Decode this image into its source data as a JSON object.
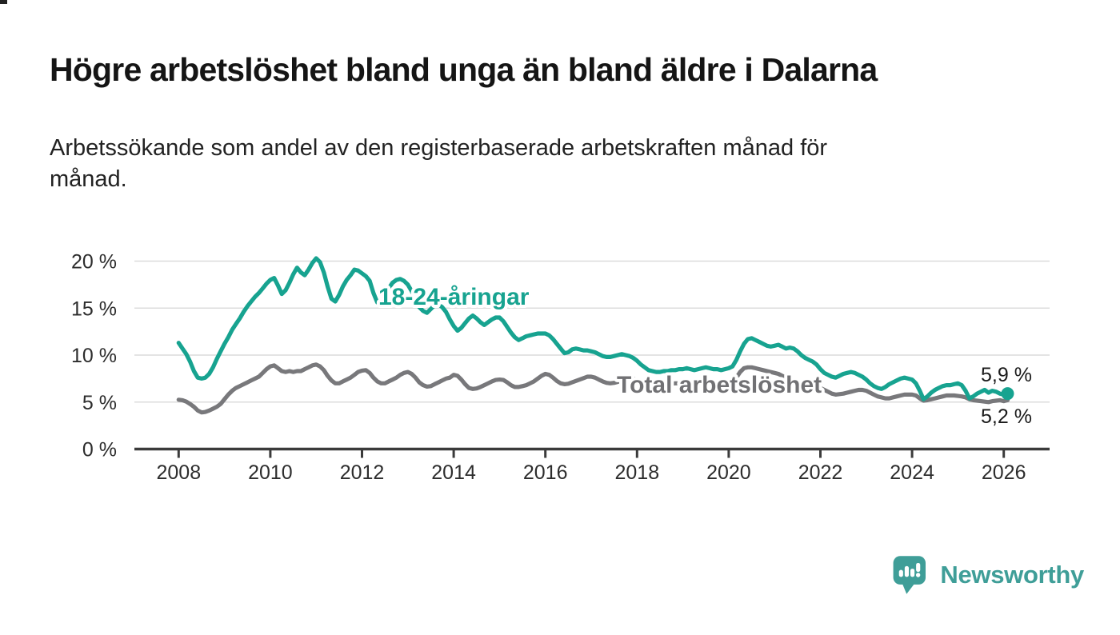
{
  "page": {
    "background": "#ffffff"
  },
  "header": {
    "title": "Högre arbetslöshet bland unga än bland äldre i Dalarna",
    "subtitle_line1": "Arbetssökande som andel av den registerbaserade arbetskraften månad för",
    "subtitle_line2": "månad."
  },
  "footer": {
    "brand": "Newsworthy",
    "logo_icon": "bar-chart-speech-bubble-icon",
    "logo_color": "#3f9e98"
  },
  "chart_data": {
    "type": "line",
    "title": "Högre arbetslöshet bland unga än bland äldre i Dalarna",
    "subtitle": "Arbetssökande som andel av den registerbaserade arbetskraften månad för månad.",
    "x_start": "2008-01",
    "x_end": "2026-02",
    "x_frequency": "monthly",
    "xlabel": "",
    "ylabel": "",
    "ylim": [
      0,
      21.5
    ],
    "grid": true,
    "legend_position": "inline-labels",
    "x_tick_labels": [
      "2008",
      "2010",
      "2012",
      "2014",
      "2016",
      "2018",
      "2020",
      "2022",
      "2024",
      "2026"
    ],
    "y_ticks": [
      0,
      5,
      10,
      15,
      20
    ],
    "y_tick_labels": [
      "0 %",
      "5 %",
      "10 %",
      "15 %",
      "20 %"
    ],
    "axis_color": "#3b3b3b",
    "grid_color": "#dcdcdc",
    "tick_label_color": "#2d2d2d",
    "end_label_color": "#1a1a1a",
    "series": [
      {
        "name": "18-24-åringar",
        "color": "#17a390",
        "label_color": "#17a390",
        "end_label": "5,9 %",
        "end_value": 5.9,
        "values": [
          11.3,
          10.7,
          10.1,
          9.3,
          8.3,
          7.6,
          7.5,
          7.6,
          8.0,
          8.7,
          9.6,
          10.4,
          11.2,
          11.9,
          12.7,
          13.3,
          13.9,
          14.6,
          15.2,
          15.7,
          16.2,
          16.6,
          17.1,
          17.6,
          18.0,
          18.2,
          17.4,
          16.5,
          16.9,
          17.7,
          18.6,
          19.3,
          18.8,
          18.5,
          19.1,
          19.8,
          20.3,
          19.9,
          18.8,
          17.3,
          16.0,
          15.7,
          16.4,
          17.3,
          18.0,
          18.5,
          19.1,
          19.0,
          18.7,
          18.4,
          17.9,
          16.6,
          15.6,
          15.4,
          16.2,
          17.1,
          17.7,
          18.0,
          18.1,
          17.9,
          17.5,
          16.8,
          15.9,
          15.1,
          14.7,
          14.5,
          14.9,
          15.3,
          15.4,
          15.1,
          14.6,
          13.8,
          13.1,
          12.6,
          12.9,
          13.4,
          13.9,
          14.2,
          13.9,
          13.5,
          13.2,
          13.5,
          13.8,
          14.0,
          14.0,
          13.6,
          13.0,
          12.4,
          11.9,
          11.6,
          11.8,
          12.0,
          12.1,
          12.2,
          12.3,
          12.3,
          12.3,
          12.1,
          11.7,
          11.2,
          10.7,
          10.2,
          10.3,
          10.6,
          10.7,
          10.6,
          10.5,
          10.5,
          10.4,
          10.3,
          10.1,
          9.9,
          9.8,
          9.8,
          9.9,
          10.0,
          10.1,
          10.0,
          9.9,
          9.7,
          9.4,
          9.0,
          8.7,
          8.4,
          8.3,
          8.2,
          8.2,
          8.3,
          8.3,
          8.4,
          8.4,
          8.5,
          8.5,
          8.6,
          8.5,
          8.4,
          8.5,
          8.6,
          8.7,
          8.6,
          8.5,
          8.5,
          8.4,
          8.5,
          8.6,
          8.8,
          9.5,
          10.4,
          11.2,
          11.7,
          11.8,
          11.6,
          11.4,
          11.2,
          11.0,
          10.9,
          11.0,
          11.1,
          10.9,
          10.7,
          10.8,
          10.7,
          10.4,
          10.0,
          9.7,
          9.5,
          9.3,
          9.0,
          8.5,
          8.1,
          7.9,
          7.7,
          7.6,
          7.8,
          8.0,
          8.1,
          8.2,
          8.1,
          7.9,
          7.7,
          7.4,
          7.0,
          6.7,
          6.5,
          6.4,
          6.6,
          6.9,
          7.1,
          7.3,
          7.5,
          7.6,
          7.5,
          7.4,
          7.0,
          6.2,
          5.3,
          5.6,
          6.0,
          6.3,
          6.5,
          6.7,
          6.8,
          6.8,
          6.9,
          7.0,
          6.8,
          6.2,
          5.4,
          5.6,
          5.9,
          6.1,
          6.3,
          6.0,
          6.2,
          6.1,
          5.9,
          5.8,
          5.9
        ]
      },
      {
        "name": "Total arbetslöshet",
        "color": "#78787b",
        "label_color": "#717174",
        "end_label": "5,2 %",
        "end_value": 5.2,
        "values": [
          5.25,
          5.2,
          5.05,
          4.8,
          4.5,
          4.1,
          3.9,
          3.95,
          4.1,
          4.3,
          4.5,
          4.8,
          5.3,
          5.8,
          6.2,
          6.5,
          6.7,
          6.9,
          7.1,
          7.3,
          7.5,
          7.7,
          8.1,
          8.5,
          8.8,
          8.9,
          8.6,
          8.3,
          8.2,
          8.3,
          8.2,
          8.3,
          8.3,
          8.5,
          8.7,
          8.9,
          9.0,
          8.8,
          8.4,
          7.8,
          7.3,
          7.0,
          7.0,
          7.2,
          7.4,
          7.6,
          7.9,
          8.2,
          8.35,
          8.4,
          8.1,
          7.6,
          7.2,
          7.0,
          7.0,
          7.2,
          7.4,
          7.6,
          7.9,
          8.1,
          8.2,
          8.0,
          7.6,
          7.1,
          6.8,
          6.65,
          6.7,
          6.9,
          7.1,
          7.3,
          7.5,
          7.6,
          7.9,
          7.8,
          7.4,
          6.9,
          6.5,
          6.4,
          6.45,
          6.6,
          6.8,
          7.0,
          7.2,
          7.35,
          7.4,
          7.35,
          7.1,
          6.8,
          6.6,
          6.6,
          6.7,
          6.8,
          7.0,
          7.2,
          7.5,
          7.8,
          8.0,
          7.9,
          7.6,
          7.25,
          7.0,
          6.9,
          6.95,
          7.1,
          7.25,
          7.4,
          7.55,
          7.7,
          7.7,
          7.6,
          7.4,
          7.2,
          7.05,
          7.0,
          7.05,
          7.15,
          7.3,
          7.4,
          7.45,
          7.5,
          7.4,
          7.3,
          7.1,
          6.95,
          6.85,
          6.8,
          6.8,
          6.85,
          6.9,
          6.95,
          7.0,
          7.0,
          7.0,
          6.95,
          6.9,
          6.85,
          6.8,
          6.8,
          6.85,
          6.9,
          6.9,
          6.9,
          6.95,
          7.0,
          7.1,
          7.2,
          7.6,
          8.2,
          8.6,
          8.7,
          8.7,
          8.6,
          8.5,
          8.4,
          8.3,
          8.2,
          8.1,
          8.0,
          7.8,
          7.6,
          7.4,
          7.2,
          7.1,
          7.0,
          6.9,
          6.8,
          6.7,
          6.6,
          6.5,
          6.3,
          6.1,
          5.9,
          5.8,
          5.85,
          5.9,
          6.0,
          6.1,
          6.2,
          6.3,
          6.3,
          6.2,
          6.0,
          5.8,
          5.6,
          5.5,
          5.4,
          5.4,
          5.5,
          5.6,
          5.7,
          5.8,
          5.8,
          5.8,
          5.7,
          5.4,
          5.15,
          5.2,
          5.3,
          5.4,
          5.5,
          5.6,
          5.7,
          5.7,
          5.7,
          5.65,
          5.6,
          5.5,
          5.3,
          5.2,
          5.15,
          5.1,
          5.05,
          5.0,
          5.1,
          5.15,
          5.2,
          5.1,
          5.2
        ]
      }
    ]
  }
}
